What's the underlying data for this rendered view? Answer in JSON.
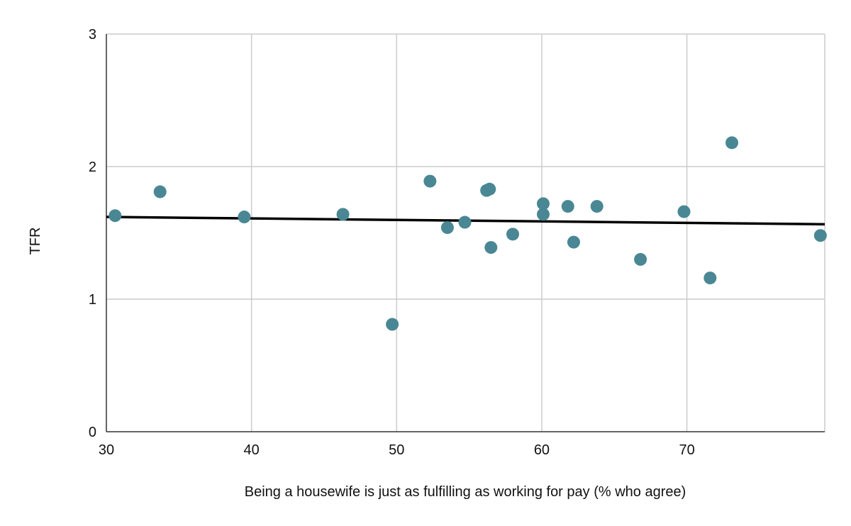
{
  "chart_data": {
    "type": "scatter",
    "title": "",
    "xlabel": "Being a housewife is just as fulfilling as working for pay (% who agree)",
    "ylabel": "TFR",
    "xlim": [
      30,
      79.5
    ],
    "ylim": [
      0,
      3
    ],
    "x_ticks": [
      30,
      40,
      50,
      60,
      70
    ],
    "y_ticks": [
      0,
      1,
      2,
      3
    ],
    "x_tick_labels": [
      "30",
      "40",
      "50",
      "60",
      "70"
    ],
    "y_tick_labels": [
      "0",
      "1",
      "2",
      "3"
    ],
    "grid": true,
    "legend": "none",
    "colors": {
      "point": "#4a8794",
      "trendline": "#000000",
      "grid": "#cccccc"
    },
    "series": [
      {
        "points": [
          {
            "x": 30.6,
            "y": 1.63
          },
          {
            "x": 33.7,
            "y": 1.81
          },
          {
            "x": 39.5,
            "y": 1.62
          },
          {
            "x": 46.3,
            "y": 1.64
          },
          {
            "x": 49.7,
            "y": 0.81
          },
          {
            "x": 52.3,
            "y": 1.89
          },
          {
            "x": 53.5,
            "y": 1.54
          },
          {
            "x": 54.7,
            "y": 1.58
          },
          {
            "x": 56.2,
            "y": 1.82
          },
          {
            "x": 56.4,
            "y": 1.83
          },
          {
            "x": 56.5,
            "y": 1.39
          },
          {
            "x": 58.0,
            "y": 1.49
          },
          {
            "x": 60.1,
            "y": 1.72
          },
          {
            "x": 60.1,
            "y": 1.64
          },
          {
            "x": 61.8,
            "y": 1.7
          },
          {
            "x": 62.2,
            "y": 1.43
          },
          {
            "x": 63.8,
            "y": 1.7
          },
          {
            "x": 66.8,
            "y": 1.3
          },
          {
            "x": 69.8,
            "y": 1.66
          },
          {
            "x": 71.6,
            "y": 1.16
          },
          {
            "x": 73.1,
            "y": 2.18
          },
          {
            "x": 79.2,
            "y": 1.48
          }
        ]
      }
    ],
    "trendline": {
      "x": [
        30,
        79.5
      ],
      "y": [
        1.62,
        1.565
      ]
    }
  }
}
